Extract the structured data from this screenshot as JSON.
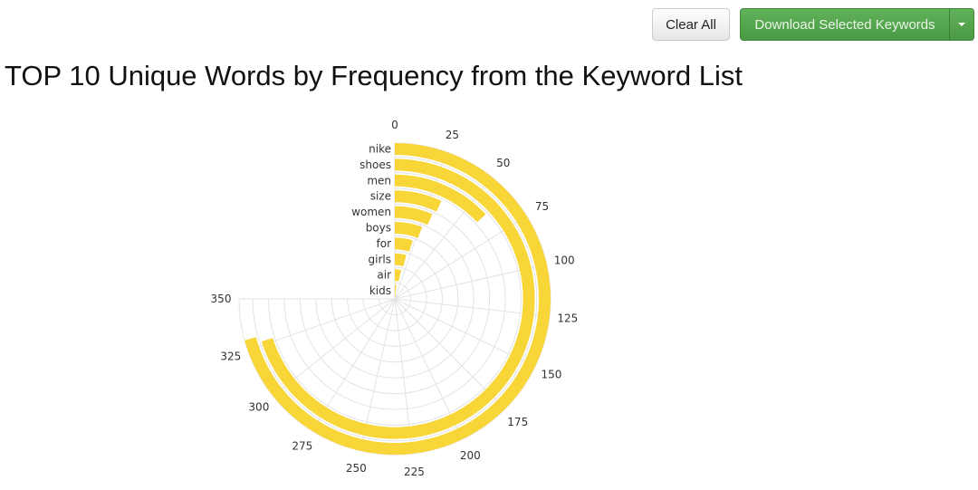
{
  "toolbar": {
    "clear_label": "Clear All",
    "download_label": "Download Selected Keywords",
    "dropdown_icon": "caret-down-icon"
  },
  "title": "TOP 10 Unique Words by Frequency from the Keyword List",
  "chart_data": {
    "type": "bar",
    "subtype": "radial-bar",
    "title": "TOP 10 Unique Words by Frequency from the Keyword List",
    "categories": [
      "nike",
      "shoes",
      "men",
      "size",
      "women",
      "boys",
      "for",
      "girls",
      "air",
      "kids"
    ],
    "values": [
      330,
      327,
      61,
      33,
      31,
      27,
      22,
      19,
      16,
      8
    ],
    "axis_range": [
      0,
      350
    ],
    "ticks": [
      0,
      25,
      50,
      75,
      100,
      125,
      150,
      175,
      200,
      225,
      250,
      275,
      300,
      325,
      350
    ],
    "grid": true,
    "bar_color": "#f8d638"
  }
}
